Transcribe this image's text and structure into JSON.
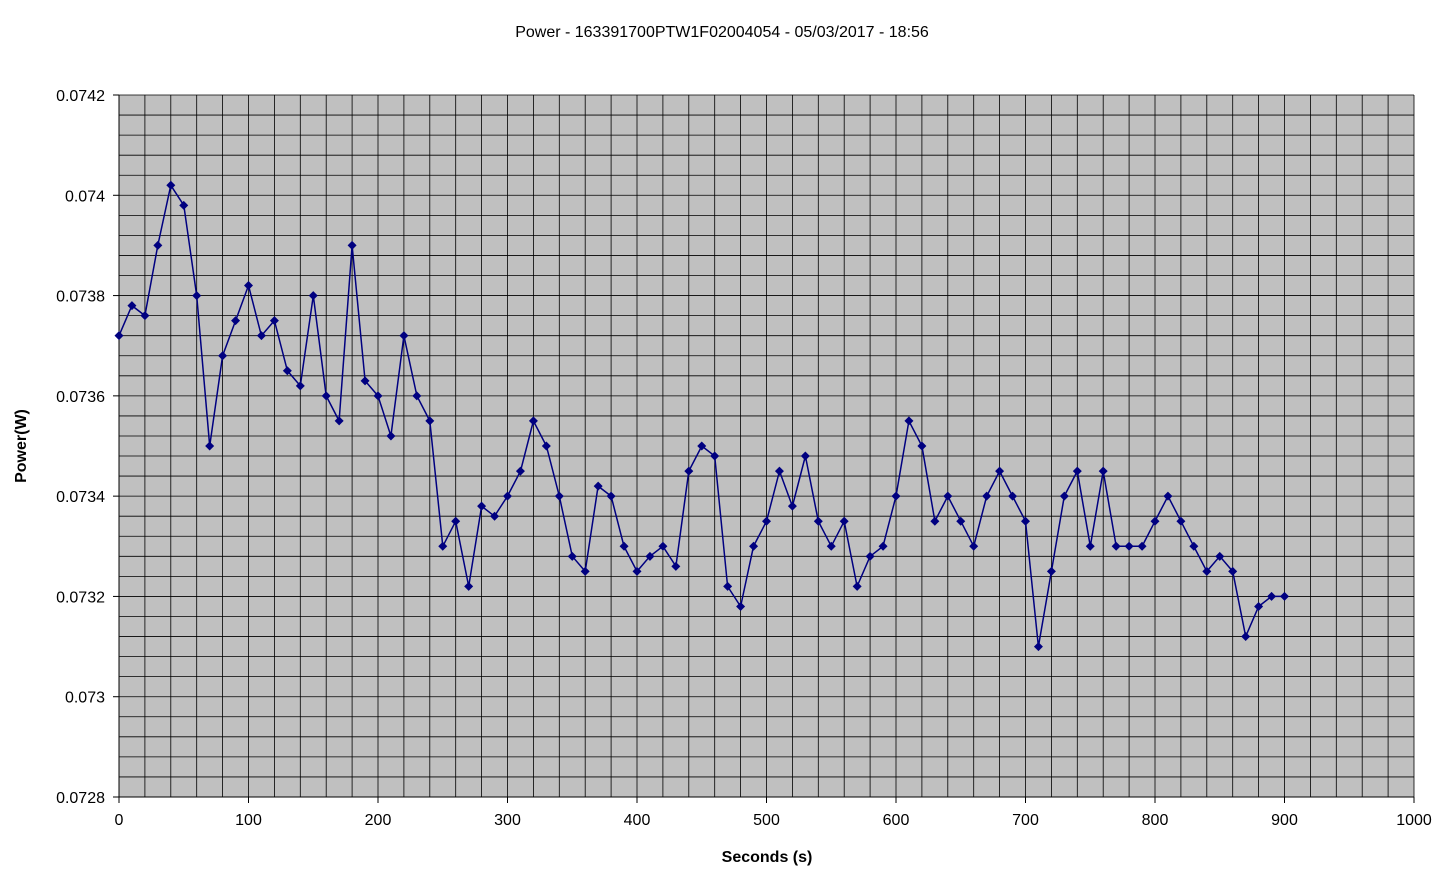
{
  "chart_data": {
    "type": "line",
    "title": "Power - 163391700PTW1F02004054 - 05/03/2017 - 18:56",
    "xlabel": "Seconds (s)",
    "ylabel": "Power(W)",
    "xlim": [
      0,
      1000
    ],
    "ylim": [
      0.0728,
      0.0742
    ],
    "x_ticks": [
      0,
      100,
      200,
      300,
      400,
      500,
      600,
      700,
      800,
      900,
      1000
    ],
    "y_ticks": [
      "0.0728",
      "0.073",
      "0.0732",
      "0.0734",
      "0.0736",
      "0.0738",
      "0.074",
      "0.0742"
    ],
    "grid": true,
    "marker": "diamond",
    "colors": {
      "series": "#000080",
      "plot_background": "#c0c0c0",
      "grid": "#000000"
    },
    "series": [
      {
        "x": [
          0,
          10,
          20,
          30,
          40,
          50,
          60,
          70,
          80,
          90,
          100,
          110,
          120,
          130,
          140,
          150,
          160,
          170,
          180,
          190,
          200,
          210,
          220,
          230,
          240,
          250,
          260,
          270,
          280,
          290,
          300,
          310,
          320,
          330,
          340,
          350,
          360,
          370,
          380,
          390,
          400,
          410,
          420,
          430,
          440,
          450,
          460,
          470,
          480,
          490,
          500,
          510,
          520,
          530,
          540,
          550,
          560,
          570,
          580,
          590,
          600,
          610,
          620,
          630,
          640,
          650,
          660,
          670,
          680,
          690,
          700,
          710,
          720,
          730,
          740,
          750,
          760,
          770,
          780,
          790,
          800,
          810,
          820,
          830,
          840,
          850,
          860,
          870,
          880,
          890,
          900
        ],
        "values": [
          0.07372,
          0.07378,
          0.07376,
          0.0739,
          0.07402,
          0.07398,
          0.0738,
          0.0735,
          0.07368,
          0.07375,
          0.07382,
          0.07372,
          0.07375,
          0.07365,
          0.07362,
          0.0738,
          0.0736,
          0.07355,
          0.0739,
          0.07363,
          0.0736,
          0.07352,
          0.07372,
          0.0736,
          0.07355,
          0.0733,
          0.07335,
          0.07322,
          0.07338,
          0.07336,
          0.0734,
          0.07345,
          0.07355,
          0.0735,
          0.0734,
          0.07328,
          0.07325,
          0.07342,
          0.0734,
          0.0733,
          0.07325,
          0.07328,
          0.0733,
          0.07326,
          0.07345,
          0.0735,
          0.07348,
          0.07322,
          0.07318,
          0.0733,
          0.07335,
          0.07345,
          0.07338,
          0.07348,
          0.07335,
          0.0733,
          0.07335,
          0.07322,
          0.07328,
          0.0733,
          0.0734,
          0.07355,
          0.0735,
          0.07335,
          0.0734,
          0.07335,
          0.0733,
          0.0734,
          0.07345,
          0.0734,
          0.07335,
          0.0731,
          0.07325,
          0.0734,
          0.07345,
          0.0733,
          0.07345,
          0.0733,
          0.0733,
          0.0733,
          0.07335,
          0.0734,
          0.07335,
          0.0733,
          0.07325,
          0.07328,
          0.07325,
          0.07312,
          0.07318,
          0.0732,
          0.0732
        ]
      }
    ]
  }
}
